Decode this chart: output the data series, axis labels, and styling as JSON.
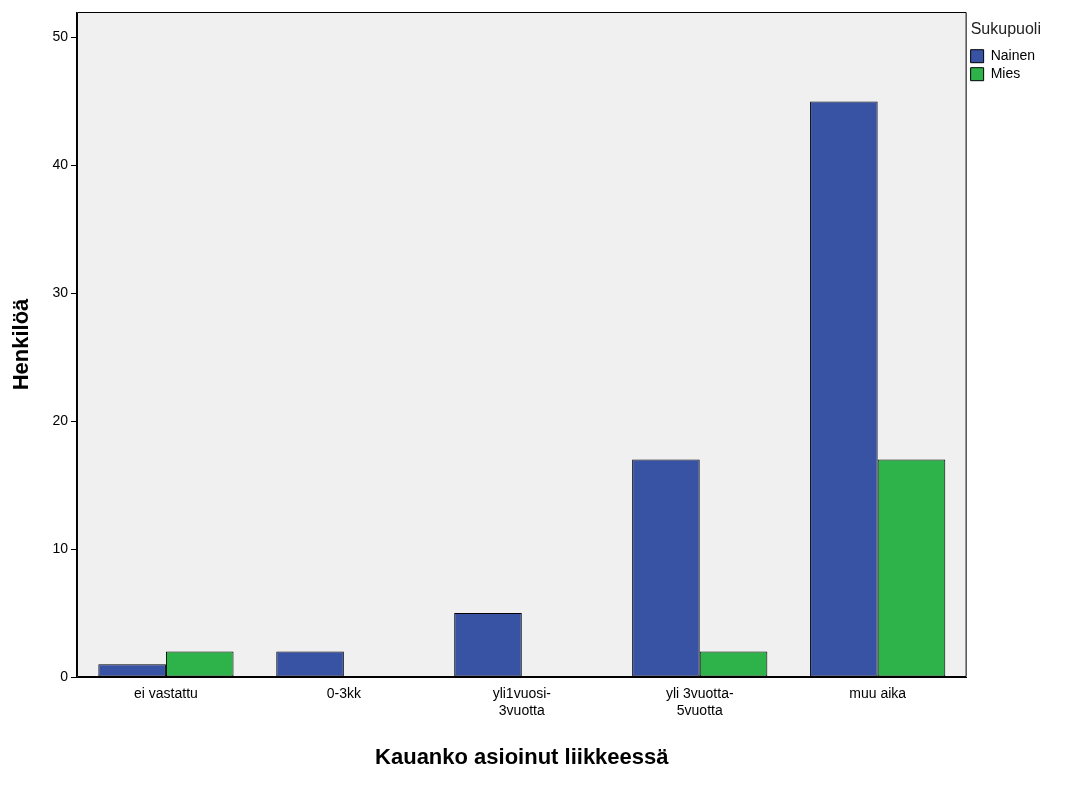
{
  "chart_data": {
    "type": "bar",
    "xlabel": "Kauanko asioinut liikkeessä",
    "ylabel": "Henkilöä",
    "legend_title": "Sukupuoli",
    "categories": [
      "ei vastattu",
      "0-3kk",
      "yli1vuosi-\n3vuotta",
      "yli 3vuotta-\n5vuotta",
      "muu aika"
    ],
    "series": [
      {
        "name": "Nainen",
        "color": "#3953a4",
        "values": [
          1,
          2,
          5,
          17,
          45
        ]
      },
      {
        "name": "Mies",
        "color": "#2db34a",
        "values": [
          2,
          0,
          0,
          2,
          17
        ]
      }
    ],
    "ylim": [
      0,
      52
    ],
    "yticks": [
      0,
      10,
      20,
      30,
      40,
      50
    ],
    "grid": false,
    "legend": "top right"
  }
}
